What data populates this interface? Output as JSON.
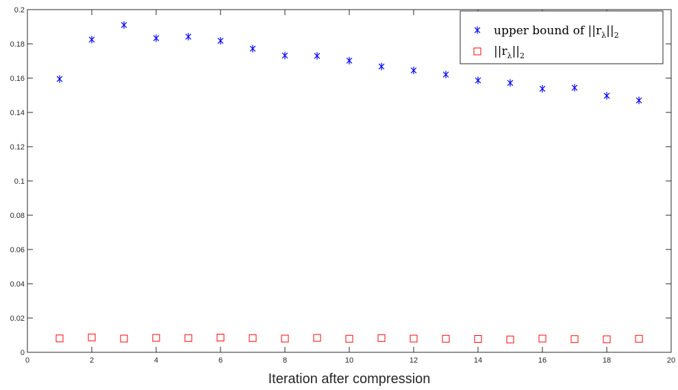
{
  "chart_data": {
    "type": "scatter",
    "xlabel": "Iteration after compression",
    "ylabel": "",
    "xlim": [
      0,
      20
    ],
    "ylim": [
      0,
      0.2
    ],
    "xticks": [
      "0",
      "2",
      "4",
      "6",
      "8",
      "10",
      "12",
      "14",
      "16",
      "18",
      "20"
    ],
    "yticks": [
      "0",
      "0.02",
      "0.04",
      "0.06",
      "0.08",
      "0.1",
      "0.12",
      "0.14",
      "0.16",
      "0.18",
      "0.2"
    ],
    "grid": false,
    "legend_position": "top-right",
    "series": [
      {
        "name": "upper bound of ||r_λ||_2",
        "legend_main": "upper bound of ||r",
        "legend_sub": "λ",
        "legend_end": "||",
        "legend_end_sub": "2",
        "marker": "asterisk",
        "color": "#0000ff",
        "x": [
          1,
          2,
          3,
          4,
          5,
          6,
          7,
          8,
          9,
          10,
          11,
          12,
          13,
          14,
          15,
          16,
          17,
          18,
          19
        ],
        "y": [
          0.1595,
          0.1825,
          0.191,
          0.1833,
          0.1842,
          0.1818,
          0.1772,
          0.1732,
          0.173,
          0.1702,
          0.1668,
          0.1645,
          0.1621,
          0.1587,
          0.1572,
          0.1538,
          0.1544,
          0.1497,
          0.147
        ]
      },
      {
        "name": "||r_λ||_2",
        "legend_main": "||r",
        "legend_sub": "λ",
        "legend_end": "||",
        "legend_end_sub": "2",
        "marker": "square",
        "color": "#ff0000",
        "x": [
          1,
          2,
          3,
          4,
          5,
          6,
          7,
          8,
          9,
          10,
          11,
          12,
          13,
          14,
          15,
          16,
          17,
          18,
          19
        ],
        "y": [
          0.0081,
          0.0087,
          0.008,
          0.0084,
          0.0083,
          0.0086,
          0.0083,
          0.008,
          0.0084,
          0.0079,
          0.0083,
          0.008,
          0.0079,
          0.0078,
          0.0075,
          0.008,
          0.0077,
          0.0076,
          0.0079
        ]
      }
    ]
  }
}
